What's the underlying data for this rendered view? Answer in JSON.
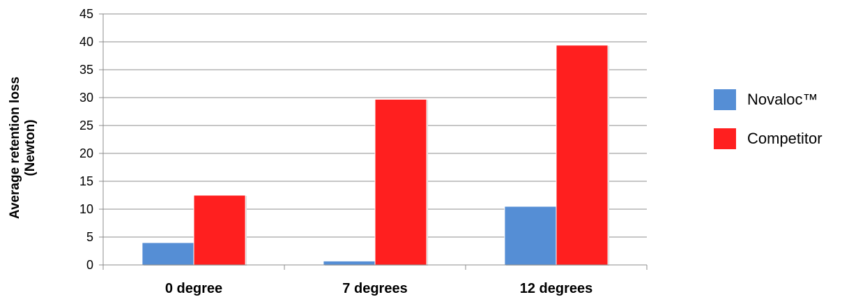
{
  "chart_data": {
    "type": "bar",
    "categories": [
      "0 degree",
      "7 degrees",
      "12 degrees"
    ],
    "series": [
      {
        "name": "Novaloc™",
        "color": "#558ed5",
        "values": [
          4,
          0.7,
          10.5
        ]
      },
      {
        "name": "Competitor",
        "color": "#ff1f1f",
        "values": [
          12.5,
          29.7,
          39.4
        ]
      }
    ],
    "ylabel_line1": "Average retention loss",
    "ylabel_line2": "(Newton)",
    "ylim": [
      0,
      45
    ],
    "yticks": [
      "0",
      "5",
      "10",
      "15",
      "20",
      "25",
      "30",
      "35",
      "40",
      "45"
    ],
    "grid": true,
    "legend_position": "right"
  }
}
